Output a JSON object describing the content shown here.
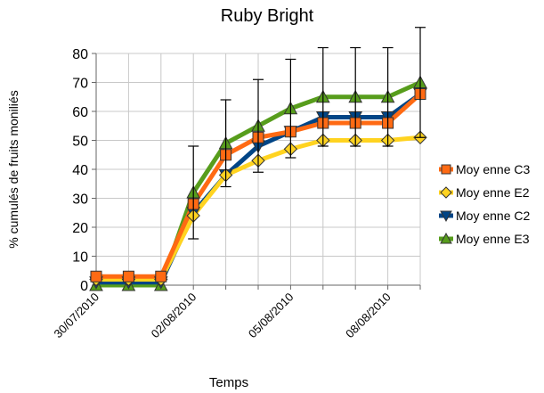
{
  "chart_data": {
    "type": "line",
    "title": "Ruby Bright",
    "x_label": "Temps",
    "y_label": "% cumulés de fruits moniliés",
    "categories": [
      "30/07/2010",
      null,
      null,
      "02/08/2010",
      null,
      null,
      "05/08/2010",
      null,
      null,
      "08/08/2010",
      null
    ],
    "series": [
      {
        "name": "Moy enne C3",
        "color": "#ff6a13",
        "marker": "square",
        "values": [
          3,
          3,
          3,
          28,
          45,
          51,
          53,
          56,
          56,
          56,
          66
        ]
      },
      {
        "name": "Moy enne E2",
        "color": "#ffd320",
        "marker": "diamond",
        "values": [
          2,
          2,
          2,
          24,
          38,
          43,
          47,
          50,
          50,
          50,
          51
        ]
      },
      {
        "name": "Moy enne C2",
        "color": "#004586",
        "marker": "triangle-down",
        "values": [
          1,
          1,
          1,
          25,
          38,
          48,
          53,
          58,
          58,
          58,
          66
        ]
      },
      {
        "name": "Moy enne E3",
        "color": "#579d1c",
        "marker": "triangle-up",
        "values": [
          0,
          0,
          0,
          32,
          49,
          55,
          61,
          65,
          65,
          65,
          70
        ],
        "errors": [
          0,
          0,
          0,
          16,
          15,
          16,
          17,
          17,
          17,
          17,
          19
        ]
      }
    ],
    "ylim": [
      0,
      80
    ],
    "yticks": [
      0,
      10,
      20,
      30,
      40,
      50,
      60,
      70,
      80
    ],
    "grid": true,
    "legend": "right"
  }
}
